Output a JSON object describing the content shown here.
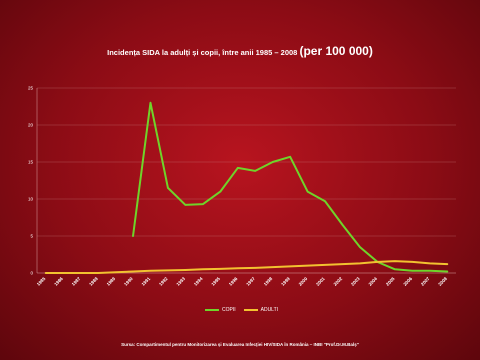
{
  "title": {
    "main": "Incidența SIDA la adulți și copii, între anii 1985 – 2008",
    "unit": "(per 100 000)"
  },
  "source": "Sursa: Compartimentul pentru Monitorizarea și Evaluarea Infecției HIV/SIDA în România – INBI \"Prof.Dr.M.Balș\"",
  "chart_data": {
    "type": "line",
    "title": "Incidența SIDA la adulți și copii, între anii 1985 – 2008 (per 100 000)",
    "x": [
      1985,
      1986,
      1987,
      1988,
      1989,
      1990,
      1991,
      1992,
      1993,
      1994,
      1995,
      1996,
      1997,
      1998,
      1999,
      2000,
      2001,
      2002,
      2003,
      2004,
      2005,
      2006,
      2007,
      2008
    ],
    "series": [
      {
        "name": "COPII",
        "color": "#6fd42a",
        "values": [
          null,
          null,
          null,
          null,
          null,
          5,
          23,
          11.5,
          9.2,
          9.3,
          11,
          14.2,
          13.8,
          15,
          15.7,
          11,
          9.7,
          6.5,
          3.5,
          1.5,
          0.5,
          0.3,
          0.3,
          0.2
        ]
      },
      {
        "name": "ADULTI",
        "color": "#f2c230",
        "values": [
          0,
          0,
          0,
          0,
          0.1,
          0.2,
          0.3,
          0.35,
          0.4,
          0.5,
          0.55,
          0.65,
          0.7,
          0.8,
          0.9,
          1.0,
          1.1,
          1.2,
          1.3,
          1.5,
          1.6,
          1.5,
          1.3,
          1.2
        ]
      }
    ],
    "ylim": [
      0,
      25
    ],
    "yticks": [
      0,
      5,
      10,
      15,
      20,
      25
    ],
    "grid": true,
    "legend": "bottom-center"
  }
}
